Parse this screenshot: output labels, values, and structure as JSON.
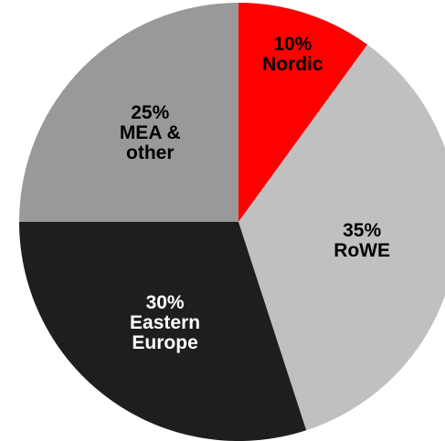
{
  "chart_data": {
    "type": "pie",
    "categories": [
      "Nordic",
      "RoWE",
      "Eastern Europe",
      "MEA & other"
    ],
    "values": [
      10,
      35,
      30,
      25
    ],
    "value_labels": [
      "10%",
      "35%",
      "30%",
      "25%"
    ],
    "colors": [
      "#ff0000",
      "#c0c0c0",
      "#1e1e1e",
      "#999999"
    ],
    "label_colors": [
      "#000000",
      "#000000",
      "#ffffff",
      "#000000"
    ]
  }
}
